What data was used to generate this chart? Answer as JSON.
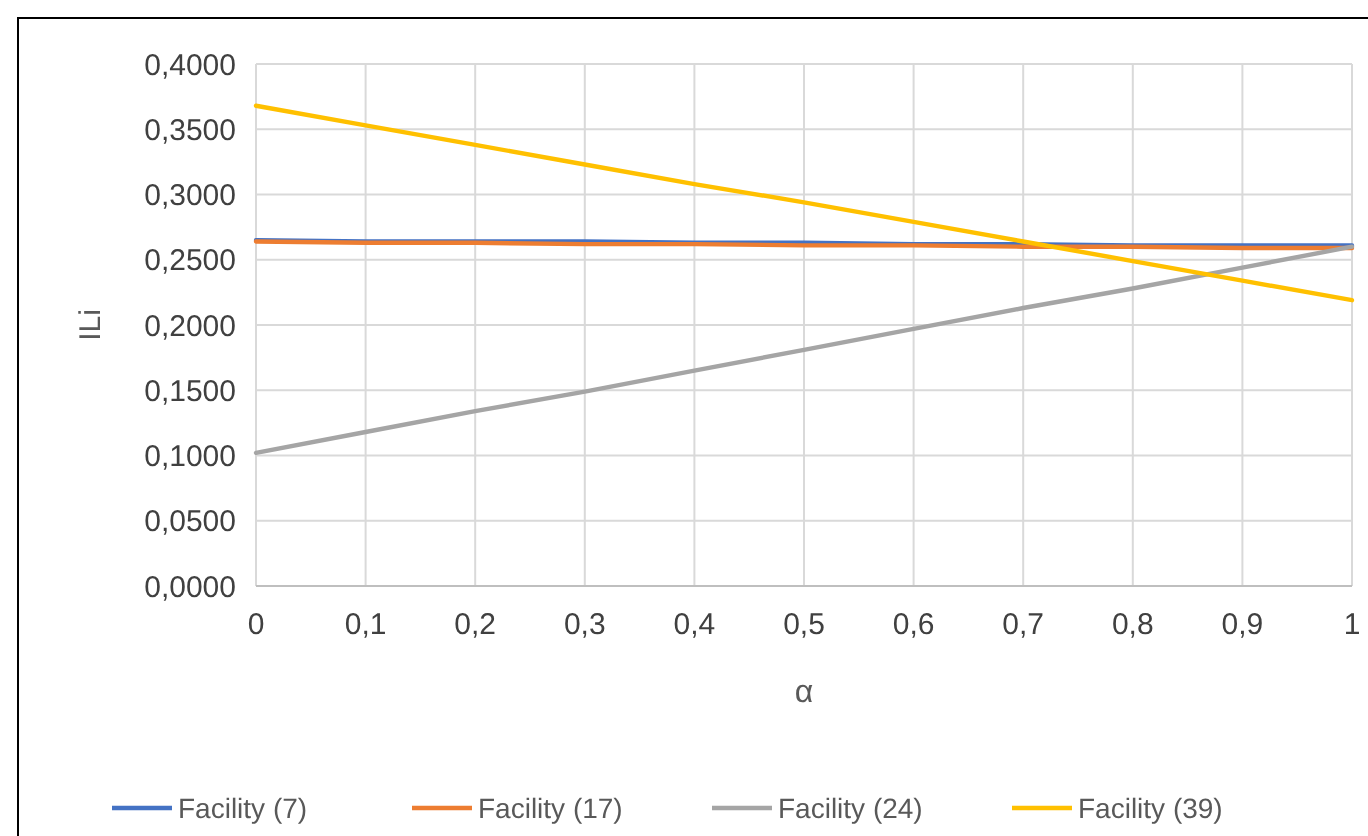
{
  "chart_data": {
    "type": "line",
    "xlabel": "α",
    "ylabel": "ILi",
    "x": [
      0,
      0.1,
      0.2,
      0.3,
      0.4,
      0.5,
      0.6,
      0.7,
      0.8,
      0.9,
      1
    ],
    "series": [
      {
        "name": "Facility (7)",
        "color": "#4472c4",
        "values": [
          0.265,
          0.264,
          0.264,
          0.264,
          0.263,
          0.263,
          0.262,
          0.262,
          0.261,
          0.261,
          0.261
        ]
      },
      {
        "name": "Facility (17)",
        "color": "#ed7d31",
        "values": [
          0.264,
          0.263,
          0.263,
          0.262,
          0.262,
          0.261,
          0.261,
          0.26,
          0.26,
          0.259,
          0.259
        ]
      },
      {
        "name": "Facility (24)",
        "color": "#a5a5a5",
        "values": [
          0.102,
          0.118,
          0.134,
          0.149,
          0.165,
          0.181,
          0.197,
          0.213,
          0.228,
          0.244,
          0.26
        ]
      },
      {
        "name": "Facility (39)",
        "color": "#ffc000",
        "values": [
          0.368,
          0.353,
          0.338,
          0.323,
          0.308,
          0.294,
          0.279,
          0.264,
          0.249,
          0.234,
          0.219
        ]
      }
    ],
    "xlim": [
      0,
      1
    ],
    "xticks": [
      0,
      {
        "value": 0.1,
        "label": "0,1"
      },
      {
        "value": 0.2,
        "label": "0,2"
      },
      {
        "value": 0.3,
        "label": "0,3"
      },
      {
        "value": 0.4,
        "label": "0,4"
      },
      {
        "value": 0.5,
        "label": "0,5"
      },
      {
        "value": 0.6,
        "label": "0,6"
      },
      {
        "value": 0.7,
        "label": "0,7"
      },
      {
        "value": 0.8,
        "label": "0,8"
      },
      {
        "value": 0.9,
        "label": "0,9"
      },
      1
    ],
    "ylim": [
      0,
      0.4
    ],
    "yticks": [
      {
        "value": 0,
        "label": "0,0000"
      },
      {
        "value": 0.05,
        "label": "0,0500"
      },
      {
        "value": 0.1,
        "label": "0,1000"
      },
      {
        "value": 0.15,
        "label": "0,1500"
      },
      {
        "value": 0.2,
        "label": "0,2000"
      },
      {
        "value": 0.25,
        "label": "0,2500"
      },
      {
        "value": 0.3,
        "label": "0,3000"
      },
      {
        "value": 0.35,
        "label": "0,3500"
      },
      {
        "value": 0.4,
        "label": "0,4000"
      }
    ],
    "grid": true,
    "legend": "bottom",
    "marker": "none",
    "line_style": "solid"
  }
}
